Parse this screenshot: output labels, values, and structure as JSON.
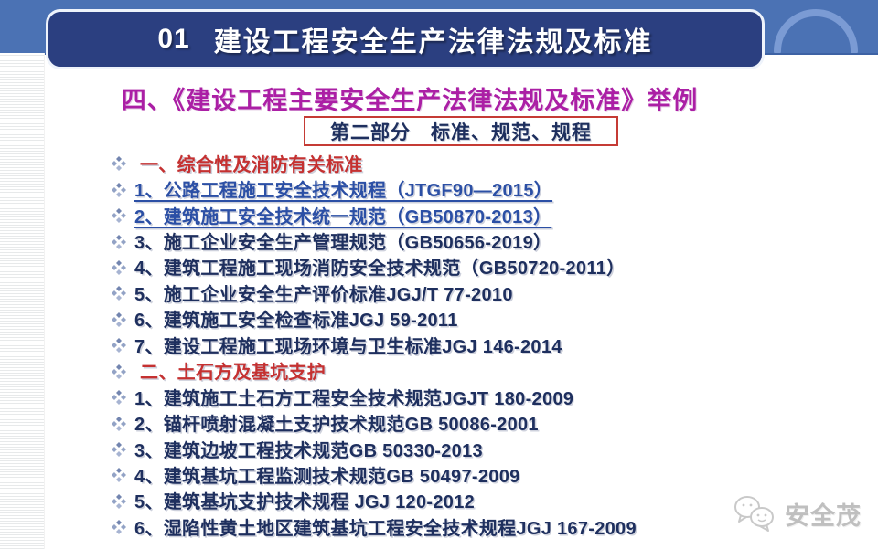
{
  "header": {
    "chapter_no": "01",
    "title": "建设工程安全生产法律法规及标准"
  },
  "subtitle": "四、《建设工程主要安全生产法律法规及标准》举例",
  "part_box": "第二部分　标准、规范、规程",
  "list": {
    "items": [
      {
        "text": "一、综合性及消防有关标准",
        "style": "section"
      },
      {
        "text": "1、公路工程施工安全技术规程（JTGF90—2015）",
        "style": "link"
      },
      {
        "text": "2、建筑施工安全技术统一规范（GB50870-2013）",
        "style": "link"
      },
      {
        "text": "3、施工企业安全生产管理规范（GB50656-2019）",
        "style": "normal"
      },
      {
        "text": "4、建筑工程施工现场消防安全技术规范（GB50720-2011）",
        "style": "normal"
      },
      {
        "text": "5、施工企业安全生产评价标准JGJ/T 77-2010",
        "style": "normal"
      },
      {
        "text": "6、建筑施工安全检查标准JGJ 59-2011",
        "style": "normal"
      },
      {
        "text": "7、建设工程施工现场环境与卫生标准JGJ 146-2014",
        "style": "normal"
      },
      {
        "text": "二、土石方及基坑支护",
        "style": "section"
      },
      {
        "text": "1、建筑施工土石方工程安全技术规范JGJT 180-2009",
        "style": "normal"
      },
      {
        "text": "2、锚杆喷射混凝土支护技术规范GB 50086-2001",
        "style": "normal"
      },
      {
        "text": "3、建筑边坡工程技术规范GB 50330-2013",
        "style": "normal"
      },
      {
        "text": "4、建筑基坑工程监测技术规范GB 50497-2009",
        "style": "normal"
      },
      {
        "text": "5、建筑基坑支护技术规程 JGJ 120-2012",
        "style": "normal"
      },
      {
        "text": "6、湿陷性黄土地区建筑基坑工程安全技术规程JGJ 167-2009",
        "style": "normal"
      }
    ]
  },
  "footer": {
    "logo_text": "安全茂"
  },
  "colors": {
    "band_blue": "#4b72b4",
    "arc_blue": "#7b9bd4",
    "titlebar_navy": "#2b3f80",
    "subtitle_magenta": "#ab1fa5",
    "section_red": "#c53131",
    "box_border_red": "#c53b35",
    "body_navy": "#1e2f5e",
    "link_blue": "#2b4fa5",
    "bullet_slate": "#8fa0c4",
    "logo_gray": "#bfbfbf"
  }
}
